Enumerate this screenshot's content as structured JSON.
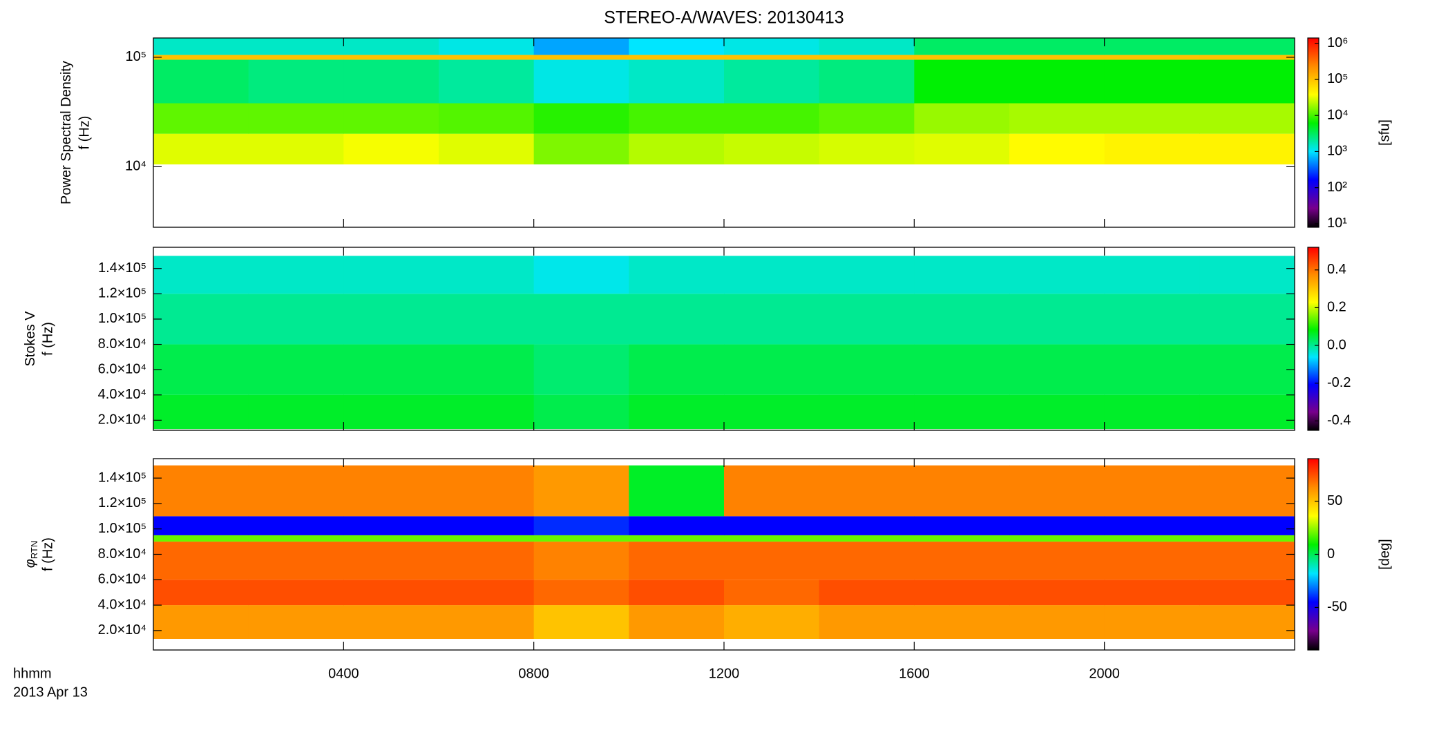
{
  "chart_data": [
    {
      "type": "heatmap",
      "title": "STEREO-A/WAVES: 20130413",
      "ylabel": "Power Spectral Density",
      "ylabel2": "f (Hz)",
      "yscale": "log",
      "ylim": [
        2800,
        150000
      ],
      "yticks": [
        {
          "value": 10000,
          "label": "10⁴"
        },
        {
          "value": 100000,
          "label": "10⁵"
        }
      ],
      "x_edges": [
        0,
        2,
        4,
        6,
        8,
        10,
        12,
        14,
        16,
        18,
        20,
        22,
        24
      ],
      "y_edges": [
        10500,
        20000,
        38000,
        95000,
        105000,
        150000
      ],
      "z": [
        [
          30000,
          30000,
          35000,
          30000,
          15000,
          22000,
          25000,
          28000,
          30000,
          40000,
          45000,
          45000
        ],
        [
          12000,
          12000,
          12000,
          11000,
          8000,
          10000,
          10000,
          12000,
          18000,
          20000,
          20000,
          20000
        ],
        [
          3000,
          2500,
          2500,
          2000,
          1200,
          1500,
          2000,
          2500,
          6000,
          6000,
          6000,
          6000
        ],
        [
          100000,
          100000,
          100000,
          100000,
          100000,
          100000,
          100000,
          100000,
          100000,
          100000,
          100000,
          100000
        ],
        [
          1500,
          1500,
          1500,
          1200,
          600,
          1000,
          1200,
          1500,
          3000,
          3000,
          3000,
          3000
        ]
      ],
      "colormap": "rainbow",
      "zscale": "log",
      "zlim": [
        8,
        1400000
      ],
      "zticks": [
        {
          "value": 10,
          "label": "10¹"
        },
        {
          "value": 100,
          "label": "10²"
        },
        {
          "value": 1000,
          "label": "10³"
        },
        {
          "value": 10000,
          "label": "10⁴"
        },
        {
          "value": 100000,
          "label": "10⁵"
        },
        {
          "value": 1000000,
          "label": "10⁶"
        }
      ],
      "zlabel": "[sfu]"
    },
    {
      "type": "heatmap",
      "ylabel": "Stokes V",
      "ylabel2": "f (Hz)",
      "yscale": "linear",
      "ylim": [
        12000,
        156800
      ],
      "yticks": [
        {
          "value": 20000,
          "label": "2.0×10⁴"
        },
        {
          "value": 40000,
          "label": "4.0×10⁴"
        },
        {
          "value": 60000,
          "label": "6.0×10⁴"
        },
        {
          "value": 80000,
          "label": "8.0×10⁴"
        },
        {
          "value": 100000,
          "label": "1.0×10⁵"
        },
        {
          "value": 120000,
          "label": "1.2×10⁵"
        },
        {
          "value": 140000,
          "label": "1.4×10⁵"
        }
      ],
      "x_edges": [
        0,
        2,
        4,
        6,
        8,
        10,
        12,
        14,
        16,
        18,
        20,
        22,
        24
      ],
      "y_edges": [
        13000,
        40000,
        80000,
        120000,
        150000
      ],
      "z": [
        [
          0.06,
          0.06,
          0.06,
          0.06,
          0.04,
          0.06,
          0.06,
          0.06,
          0.06,
          0.06,
          0.06,
          0.06
        ],
        [
          0.04,
          0.04,
          0.04,
          0.04,
          0.02,
          0.04,
          0.04,
          0.04,
          0.04,
          0.04,
          0.04,
          0.04
        ],
        [
          0.0,
          0.0,
          0.0,
          0.0,
          0.0,
          0.0,
          0.0,
          0.0,
          0.0,
          0.0,
          0.0,
          0.0
        ],
        [
          -0.03,
          -0.03,
          -0.03,
          -0.03,
          -0.05,
          -0.03,
          -0.03,
          -0.03,
          -0.03,
          -0.03,
          -0.03,
          -0.03
        ]
      ],
      "colormap": "rainbow",
      "zscale": "linear",
      "zlim": [
        -0.45,
        0.52
      ],
      "zticks": [
        -0.4,
        -0.2,
        {
          "value": 0,
          "label": "0.0"
        },
        0.2,
        0.4
      ]
    },
    {
      "type": "heatmap",
      "ylabel": "φ",
      "ylabel_sub": "RTN",
      "ylabel2": "f (Hz)",
      "yscale": "linear",
      "ylim": [
        4700,
        155300
      ],
      "yticks": [
        {
          "value": 20000,
          "label": "2.0×10⁴"
        },
        {
          "value": 40000,
          "label": "4.0×10⁴"
        },
        {
          "value": 60000,
          "label": "6.0×10⁴"
        },
        {
          "value": 80000,
          "label": "8.0×10⁴"
        },
        {
          "value": 100000,
          "label": "1.0×10⁵"
        },
        {
          "value": 120000,
          "label": "1.2×10⁵"
        },
        {
          "value": 140000,
          "label": "1.4×10⁵"
        }
      ],
      "xlim": [
        0,
        24
      ],
      "xticks": [
        {
          "value": 4,
          "label": "0400"
        },
        {
          "value": 8,
          "label": "0800"
        },
        {
          "value": 12,
          "label": "1200"
        },
        {
          "value": 16,
          "label": "1600"
        },
        {
          "value": 20,
          "label": "2000"
        }
      ],
      "xlabel": "hhmm",
      "date": "2013 Apr 13",
      "x_edges": [
        0,
        2,
        4,
        6,
        8,
        10,
        12,
        14,
        16,
        18,
        20,
        22,
        24
      ],
      "y_edges": [
        13400,
        40000,
        60000,
        90000,
        95000,
        110000,
        150000
      ],
      "z": [
        [
          60,
          60,
          60,
          60,
          50,
          60,
          55,
          60,
          60,
          60,
          60,
          60
        ],
        [
          75,
          75,
          75,
          75,
          70,
          75,
          70,
          75,
          75,
          75,
          75,
          75
        ],
        [
          70,
          70,
          70,
          70,
          65,
          70,
          70,
          70,
          70,
          70,
          70,
          70
        ],
        [
          20,
          20,
          20,
          20,
          20,
          20,
          20,
          20,
          20,
          20,
          20,
          20
        ],
        [
          -45,
          -45,
          -45,
          -45,
          -40,
          -45,
          -45,
          -45,
          -45,
          -45,
          -45,
          -45
        ],
        [
          65,
          65,
          65,
          65,
          60,
          5,
          65,
          65,
          65,
          65,
          65,
          65
        ]
      ],
      "colormap": "rainbow",
      "zscale": "linear",
      "zlim": [
        -90,
        90
      ],
      "zticks": [
        -50,
        0,
        50
      ],
      "zlabel": "[deg]"
    }
  ]
}
